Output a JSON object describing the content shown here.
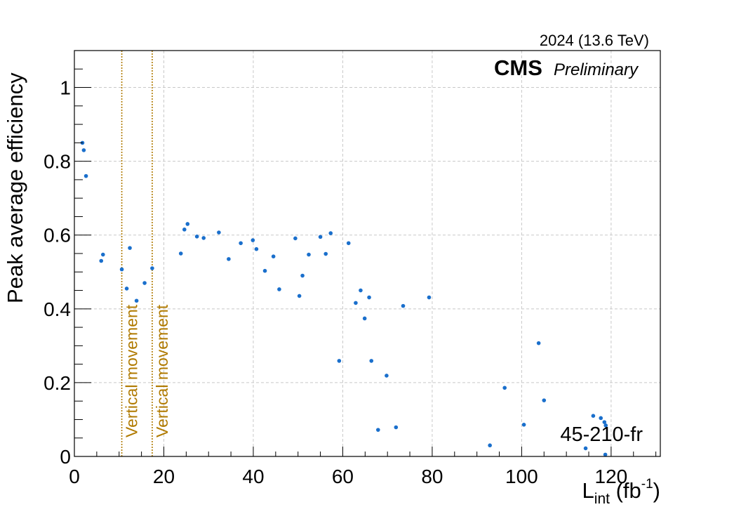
{
  "chart_data": {
    "type": "scatter",
    "title": "",
    "energy_label": "2024 (13.6 TeV)",
    "experiment": "CMS",
    "status": "Preliminary",
    "label": "45-210-fr",
    "ylabel": "Peak average efficiency",
    "xlabel": {
      "base": "L",
      "sub": "int",
      "unit_prefix": " (fb",
      "sup": "-1",
      "unit_suffix": ")"
    },
    "xlim": [
      0,
      131
    ],
    "ylim": [
      0,
      1.1
    ],
    "xticks": [
      0,
      20,
      40,
      60,
      80,
      100,
      120
    ],
    "xtick_labels": [
      "0",
      "20",
      "40",
      "60",
      "80",
      "100",
      "120"
    ],
    "yticks": [
      0,
      0.2,
      0.4,
      0.6,
      0.8,
      1
    ],
    "ytick_labels": [
      "0",
      "0.2",
      "0.4",
      "0.6",
      "0.8",
      "1"
    ],
    "grid": true,
    "marker_color": "#1a6fcc",
    "annotation_color": "#b07a00",
    "vlines": [
      {
        "x": 10.6,
        "label": "Vertical movement"
      },
      {
        "x": 17.4,
        "label": "Vertical movement"
      }
    ],
    "series": [
      {
        "points": [
          [
            1.8,
            0.85
          ],
          [
            2.1,
            0.83
          ],
          [
            2.6,
            0.76
          ],
          [
            6.0,
            0.53
          ],
          [
            6.4,
            0.547
          ],
          [
            10.6,
            0.507
          ],
          [
            11.7,
            0.455
          ],
          [
            12.4,
            0.565
          ],
          [
            13.9,
            0.422
          ],
          [
            15.7,
            0.47
          ],
          [
            17.4,
            0.51
          ],
          [
            23.8,
            0.55
          ],
          [
            24.6,
            0.615
          ],
          [
            25.3,
            0.63
          ],
          [
            27.4,
            0.596
          ],
          [
            28.9,
            0.592
          ],
          [
            32.3,
            0.607
          ],
          [
            34.5,
            0.535
          ],
          [
            37.2,
            0.578
          ],
          [
            39.9,
            0.586
          ],
          [
            40.7,
            0.562
          ],
          [
            42.6,
            0.503
          ],
          [
            44.5,
            0.542
          ],
          [
            45.8,
            0.453
          ],
          [
            49.4,
            0.591
          ],
          [
            50.3,
            0.435
          ],
          [
            51.0,
            0.49
          ],
          [
            52.4,
            0.547
          ],
          [
            55.0,
            0.595
          ],
          [
            56.2,
            0.549
          ],
          [
            57.3,
            0.605
          ],
          [
            59.2,
            0.259
          ],
          [
            61.3,
            0.578
          ],
          [
            62.9,
            0.416
          ],
          [
            64.0,
            0.45
          ],
          [
            64.9,
            0.374
          ],
          [
            65.9,
            0.431
          ],
          [
            66.4,
            0.259
          ],
          [
            67.9,
            0.072
          ],
          [
            69.8,
            0.219
          ],
          [
            71.9,
            0.079
          ],
          [
            73.5,
            0.408
          ],
          [
            79.3,
            0.431
          ],
          [
            92.9,
            0.03
          ],
          [
            96.2,
            0.186
          ],
          [
            100.5,
            0.086
          ],
          [
            103.8,
            0.307
          ],
          [
            105.0,
            0.152
          ],
          [
            114.3,
            0.022
          ],
          [
            116.0,
            0.11
          ],
          [
            117.7,
            0.104
          ],
          [
            118.5,
            0.093
          ],
          [
            118.8,
            0.084
          ],
          [
            118.7,
            0.005
          ]
        ]
      }
    ]
  }
}
